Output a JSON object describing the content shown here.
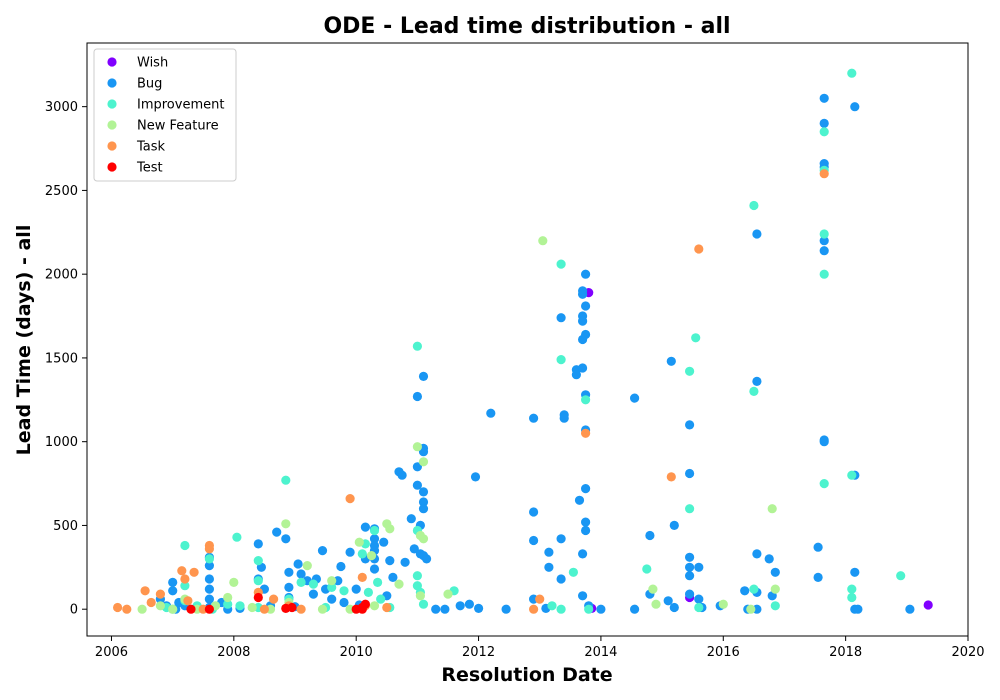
{
  "chart_data": {
    "type": "scatter",
    "title": "ODE - Lead time distribution - all",
    "xlabel": "Resolution Date",
    "ylabel": "Lead Time (days) - all",
    "xlim": [
      2005.6,
      2020.0
    ],
    "ylim": [
      -160,
      3380
    ],
    "xticks": [
      2006,
      2008,
      2010,
      2012,
      2014,
      2016,
      2018,
      2020
    ],
    "yticks": [
      0,
      500,
      1000,
      1500,
      2000,
      2500,
      3000
    ],
    "grid": false,
    "legend_position": "top-left",
    "series": [
      {
        "name": "Wish",
        "color": "#8000ff",
        "points": [
          [
            2013.8,
            1890
          ],
          [
            2013.85,
            5
          ],
          [
            2015.45,
            70
          ],
          [
            2019.35,
            25
          ]
        ]
      },
      {
        "name": "Bug",
        "color": "#1996f3",
        "points": [
          [
            2006.8,
            60
          ],
          [
            2006.9,
            20
          ],
          [
            2007.0,
            160
          ],
          [
            2007.0,
            110
          ],
          [
            2007.05,
            0
          ],
          [
            2007.1,
            40
          ],
          [
            2007.2,
            20
          ],
          [
            2007.4,
            10
          ],
          [
            2007.6,
            310
          ],
          [
            2007.6,
            260
          ],
          [
            2007.6,
            180
          ],
          [
            2007.6,
            120
          ],
          [
            2007.6,
            60
          ],
          [
            2007.6,
            10
          ],
          [
            2007.8,
            40
          ],
          [
            2007.9,
            0
          ],
          [
            2008.1,
            5
          ],
          [
            2008.4,
            390
          ],
          [
            2008.45,
            250
          ],
          [
            2008.4,
            180
          ],
          [
            2008.5,
            120
          ],
          [
            2008.6,
            20
          ],
          [
            2008.7,
            460
          ],
          [
            2008.85,
            420
          ],
          [
            2008.9,
            220
          ],
          [
            2008.9,
            130
          ],
          [
            2008.9,
            70
          ],
          [
            2009.0,
            15
          ],
          [
            2009.05,
            270
          ],
          [
            2009.1,
            210
          ],
          [
            2009.2,
            170
          ],
          [
            2009.3,
            90
          ],
          [
            2009.35,
            180
          ],
          [
            2009.45,
            350
          ],
          [
            2009.5,
            120
          ],
          [
            2009.6,
            60
          ],
          [
            2009.7,
            170
          ],
          [
            2009.75,
            255
          ],
          [
            2009.8,
            40
          ],
          [
            2009.9,
            340
          ],
          [
            2010.0,
            120
          ],
          [
            2010.05,
            25
          ],
          [
            2010.15,
            490
          ],
          [
            2010.15,
            300
          ],
          [
            2010.3,
            480
          ],
          [
            2010.3,
            420
          ],
          [
            2010.3,
            380
          ],
          [
            2010.3,
            350
          ],
          [
            2010.3,
            300
          ],
          [
            2010.3,
            240
          ],
          [
            2010.45,
            400
          ],
          [
            2010.5,
            80
          ],
          [
            2010.55,
            290
          ],
          [
            2010.6,
            190
          ],
          [
            2010.7,
            820
          ],
          [
            2010.75,
            800
          ],
          [
            2010.8,
            280
          ],
          [
            2010.9,
            540
          ],
          [
            2010.95,
            360
          ],
          [
            2011.0,
            1270
          ],
          [
            2011.0,
            850
          ],
          [
            2011.0,
            740
          ],
          [
            2011.05,
            500
          ],
          [
            2011.05,
            330
          ],
          [
            2011.1,
            1390
          ],
          [
            2011.1,
            700
          ],
          [
            2011.1,
            640
          ],
          [
            2011.1,
            600
          ],
          [
            2011.1,
            960
          ],
          [
            2011.1,
            940
          ],
          [
            2011.1,
            320
          ],
          [
            2011.15,
            300
          ],
          [
            2011.3,
            0
          ],
          [
            2011.45,
            0
          ],
          [
            2011.7,
            20
          ],
          [
            2011.85,
            30
          ],
          [
            2011.95,
            790
          ],
          [
            2012.0,
            5
          ],
          [
            2012.2,
            1170
          ],
          [
            2012.45,
            0
          ],
          [
            2012.9,
            1140
          ],
          [
            2012.9,
            580
          ],
          [
            2012.9,
            410
          ],
          [
            2012.9,
            60
          ],
          [
            2013.1,
            5
          ],
          [
            2013.15,
            340
          ],
          [
            2013.15,
            250
          ],
          [
            2013.35,
            420
          ],
          [
            2013.35,
            1740
          ],
          [
            2013.35,
            180
          ],
          [
            2013.4,
            1160
          ],
          [
            2013.4,
            1140
          ],
          [
            2013.6,
            1430
          ],
          [
            2013.6,
            1400
          ],
          [
            2013.65,
            650
          ],
          [
            2013.7,
            1900
          ],
          [
            2013.7,
            1880
          ],
          [
            2013.7,
            1750
          ],
          [
            2013.7,
            1720
          ],
          [
            2013.7,
            1610
          ],
          [
            2013.7,
            1440
          ],
          [
            2013.7,
            330
          ],
          [
            2013.75,
            2000
          ],
          [
            2013.75,
            1810
          ],
          [
            2013.75,
            1640
          ],
          [
            2013.75,
            1280
          ],
          [
            2013.75,
            1070
          ],
          [
            2013.75,
            720
          ],
          [
            2013.75,
            520
          ],
          [
            2013.75,
            470
          ],
          [
            2013.7,
            80
          ],
          [
            2013.8,
            20
          ],
          [
            2014.0,
            0
          ],
          [
            2014.55,
            1260
          ],
          [
            2014.55,
            0
          ],
          [
            2014.8,
            440
          ],
          [
            2014.8,
            90
          ],
          [
            2015.15,
            1480
          ],
          [
            2015.1,
            50
          ],
          [
            2015.2,
            500
          ],
          [
            2015.2,
            10
          ],
          [
            2015.45,
            1100
          ],
          [
            2015.45,
            810
          ],
          [
            2015.45,
            310
          ],
          [
            2015.45,
            250
          ],
          [
            2015.45,
            200
          ],
          [
            2015.45,
            90
          ],
          [
            2015.6,
            250
          ],
          [
            2015.6,
            60
          ],
          [
            2015.65,
            10
          ],
          [
            2015.95,
            20
          ],
          [
            2016.35,
            110
          ],
          [
            2016.4,
            0
          ],
          [
            2016.55,
            2240
          ],
          [
            2016.55,
            1360
          ],
          [
            2016.55,
            330
          ],
          [
            2016.55,
            100
          ],
          [
            2016.55,
            0
          ],
          [
            2016.75,
            300
          ],
          [
            2016.8,
            80
          ],
          [
            2016.85,
            220
          ],
          [
            2017.55,
            370
          ],
          [
            2017.55,
            190
          ],
          [
            2017.65,
            3050
          ],
          [
            2017.65,
            2900
          ],
          [
            2017.65,
            2660
          ],
          [
            2017.65,
            2640
          ],
          [
            2017.65,
            2200
          ],
          [
            2017.65,
            2140
          ],
          [
            2017.65,
            1010
          ],
          [
            2017.65,
            1000
          ],
          [
            2018.15,
            3000
          ],
          [
            2018.15,
            800
          ],
          [
            2018.15,
            220
          ],
          [
            2018.15,
            0
          ],
          [
            2018.2,
            0
          ],
          [
            2019.05,
            0
          ]
        ]
      },
      {
        "name": "Improvement",
        "color": "#4df3ce",
        "points": [
          [
            2006.9,
            10
          ],
          [
            2007.0,
            0
          ],
          [
            2007.2,
            380
          ],
          [
            2007.2,
            140
          ],
          [
            2007.2,
            50
          ],
          [
            2007.4,
            20
          ],
          [
            2007.6,
            300
          ],
          [
            2007.65,
            0
          ],
          [
            2007.9,
            30
          ],
          [
            2008.05,
            430
          ],
          [
            2008.1,
            20
          ],
          [
            2008.4,
            290
          ],
          [
            2008.4,
            170
          ],
          [
            2008.4,
            10
          ],
          [
            2008.85,
            770
          ],
          [
            2008.9,
            60
          ],
          [
            2009.1,
            160
          ],
          [
            2009.3,
            150
          ],
          [
            2009.5,
            10
          ],
          [
            2009.6,
            130
          ],
          [
            2009.8,
            110
          ],
          [
            2010.1,
            330
          ],
          [
            2010.15,
            390
          ],
          [
            2010.2,
            100
          ],
          [
            2010.3,
            470
          ],
          [
            2010.35,
            160
          ],
          [
            2010.4,
            60
          ],
          [
            2010.55,
            10
          ],
          [
            2011.0,
            1570
          ],
          [
            2011.0,
            470
          ],
          [
            2011.0,
            200
          ],
          [
            2011.0,
            140
          ],
          [
            2011.05,
            100
          ],
          [
            2011.1,
            30
          ],
          [
            2011.6,
            110
          ],
          [
            2013.2,
            20
          ],
          [
            2013.35,
            2060
          ],
          [
            2013.35,
            1490
          ],
          [
            2013.35,
            0
          ],
          [
            2013.55,
            220
          ],
          [
            2013.75,
            1250
          ],
          [
            2013.8,
            0
          ],
          [
            2014.75,
            240
          ],
          [
            2015.45,
            1420
          ],
          [
            2015.45,
            600
          ],
          [
            2015.55,
            1620
          ],
          [
            2015.6,
            10
          ],
          [
            2016.5,
            2410
          ],
          [
            2016.5,
            1300
          ],
          [
            2016.5,
            120
          ],
          [
            2016.85,
            20
          ],
          [
            2017.65,
            2850
          ],
          [
            2017.65,
            2620
          ],
          [
            2017.65,
            2240
          ],
          [
            2017.65,
            2000
          ],
          [
            2017.65,
            750
          ],
          [
            2018.1,
            3200
          ],
          [
            2018.1,
            800
          ],
          [
            2018.1,
            120
          ],
          [
            2018.1,
            70
          ],
          [
            2018.9,
            200
          ]
        ]
      },
      {
        "name": "New Feature",
        "color": "#b2f396",
        "points": [
          [
            2006.5,
            0
          ],
          [
            2006.8,
            20
          ],
          [
            2007.0,
            0
          ],
          [
            2007.2,
            60
          ],
          [
            2007.4,
            0
          ],
          [
            2007.7,
            20
          ],
          [
            2007.9,
            70
          ],
          [
            2008.0,
            160
          ],
          [
            2008.3,
            10
          ],
          [
            2008.6,
            0
          ],
          [
            2008.85,
            510
          ],
          [
            2008.9,
            40
          ],
          [
            2009.2,
            260
          ],
          [
            2009.45,
            0
          ],
          [
            2009.6,
            170
          ],
          [
            2009.9,
            0
          ],
          [
            2010.05,
            400
          ],
          [
            2010.25,
            320
          ],
          [
            2010.3,
            20
          ],
          [
            2010.5,
            510
          ],
          [
            2010.55,
            480
          ],
          [
            2010.7,
            150
          ],
          [
            2011.0,
            970
          ],
          [
            2011.05,
            440
          ],
          [
            2011.1,
            420
          ],
          [
            2011.1,
            880
          ],
          [
            2011.05,
            80
          ],
          [
            2011.5,
            90
          ],
          [
            2013.05,
            2200
          ],
          [
            2014.85,
            120
          ],
          [
            2014.9,
            30
          ],
          [
            2016.0,
            30
          ],
          [
            2016.45,
            0
          ],
          [
            2016.8,
            600
          ],
          [
            2016.85,
            120
          ]
        ]
      },
      {
        "name": "Task",
        "color": "#ff954e",
        "points": [
          [
            2006.1,
            10
          ],
          [
            2006.25,
            0
          ],
          [
            2006.55,
            110
          ],
          [
            2006.65,
            40
          ],
          [
            2006.8,
            90
          ],
          [
            2007.15,
            230
          ],
          [
            2007.2,
            180
          ],
          [
            2007.25,
            50
          ],
          [
            2007.35,
            220
          ],
          [
            2007.6,
            380
          ],
          [
            2007.6,
            360
          ],
          [
            2007.5,
            0
          ],
          [
            2008.4,
            100
          ],
          [
            2008.5,
            0
          ],
          [
            2008.65,
            60
          ],
          [
            2008.9,
            20
          ],
          [
            2009.1,
            0
          ],
          [
            2009.9,
            660
          ],
          [
            2010.1,
            190
          ],
          [
            2010.15,
            20
          ],
          [
            2010.5,
            10
          ],
          [
            2012.9,
            0
          ],
          [
            2013.0,
            60
          ],
          [
            2013.75,
            1050
          ],
          [
            2015.15,
            790
          ],
          [
            2015.6,
            2150
          ],
          [
            2017.65,
            2600
          ]
        ]
      },
      {
        "name": "Test",
        "color": "#ff0000",
        "points": [
          [
            2007.3,
            0
          ],
          [
            2007.6,
            0
          ],
          [
            2008.4,
            70
          ],
          [
            2008.85,
            5
          ],
          [
            2008.95,
            10
          ],
          [
            2010.0,
            0
          ],
          [
            2010.1,
            10
          ],
          [
            2010.15,
            30
          ],
          [
            2010.1,
            0
          ]
        ]
      }
    ]
  }
}
